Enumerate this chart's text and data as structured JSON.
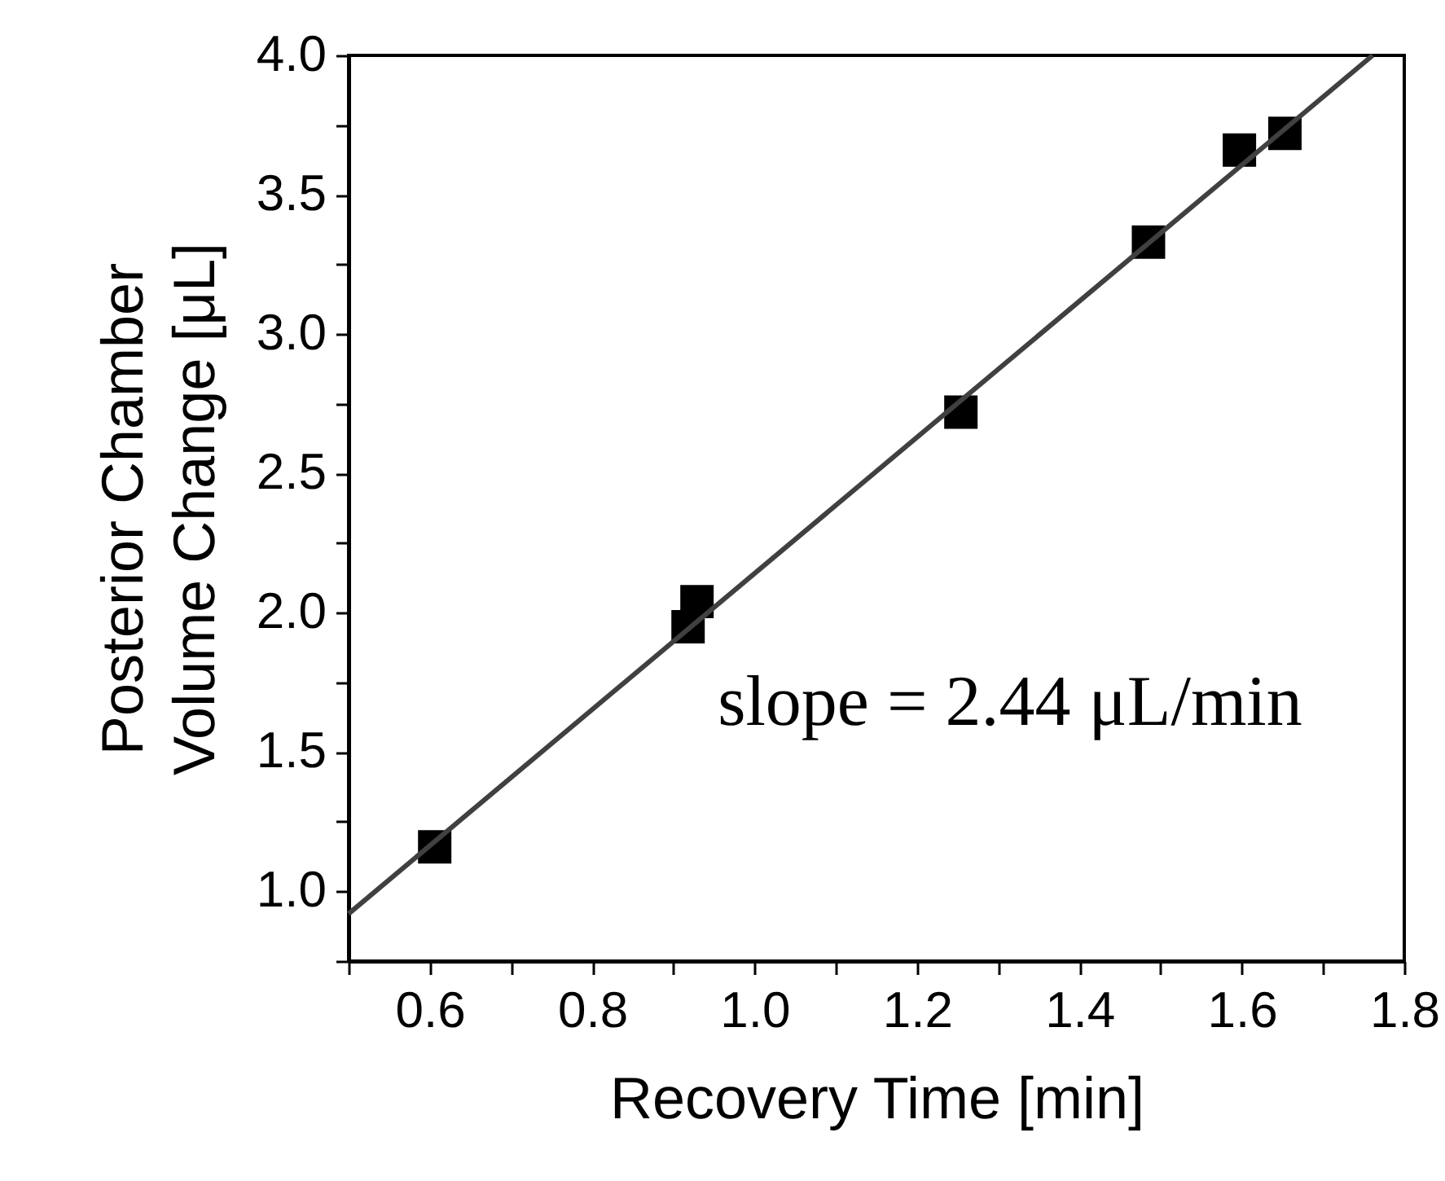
{
  "chart_data": {
    "type": "scatter",
    "xlabel": "Recovery Time [min]",
    "ylabel": "Posterior Chamber\nVolume Change [μL]",
    "annotations": [
      "slope = 2.44 μL/min"
    ],
    "series": [
      {
        "color": "#000000",
        "marker": "square",
        "x": [
          0.606,
          0.918,
          0.929,
          1.254,
          1.485,
          1.597,
          1.653
        ],
        "values": [
          1.16,
          1.95,
          2.04,
          2.72,
          3.33,
          3.66,
          3.72
        ]
      },
      {
        "type": "line",
        "color": "#404040",
        "x": [
          0.5,
          1.761
        ],
        "values": [
          0.92,
          4.0
        ]
      }
    ],
    "xlim": [
      0.5,
      1.8
    ],
    "ylim": [
      0.75,
      4.0
    ],
    "xticks": [
      {
        "value": 0.5,
        "label": null
      },
      {
        "value": 0.6,
        "label": "0.6"
      },
      {
        "value": 0.7,
        "label": null
      },
      {
        "value": 0.8,
        "label": "0.8"
      },
      {
        "value": 0.9,
        "label": null
      },
      {
        "value": 1.0,
        "label": "1.0"
      },
      {
        "value": 1.1,
        "label": null
      },
      {
        "value": 1.2,
        "label": "1.2"
      },
      {
        "value": 1.3,
        "label": null
      },
      {
        "value": 1.4,
        "label": "1.4"
      },
      {
        "value": 1.5,
        "label": null
      },
      {
        "value": 1.6,
        "label": "1.6"
      },
      {
        "value": 1.7,
        "label": null
      },
      {
        "value": 1.8,
        "label": "1.8"
      }
    ],
    "yticks": [
      {
        "value": 0.75,
        "label": null
      },
      {
        "value": 1.0,
        "label": "1.0"
      },
      {
        "value": 1.25,
        "label": null
      },
      {
        "value": 1.5,
        "label": "1.5"
      },
      {
        "value": 1.75,
        "label": null
      },
      {
        "value": 2.0,
        "label": "2.0"
      },
      {
        "value": 2.25,
        "label": null
      },
      {
        "value": 2.5,
        "label": "2.5"
      },
      {
        "value": 2.75,
        "label": null
      },
      {
        "value": 3.0,
        "label": "3.0"
      },
      {
        "value": 3.25,
        "label": null
      },
      {
        "value": 3.5,
        "label": "3.5"
      },
      {
        "value": 3.75,
        "label": null
      },
      {
        "value": 4.0,
        "label": "4.0"
      }
    ]
  }
}
